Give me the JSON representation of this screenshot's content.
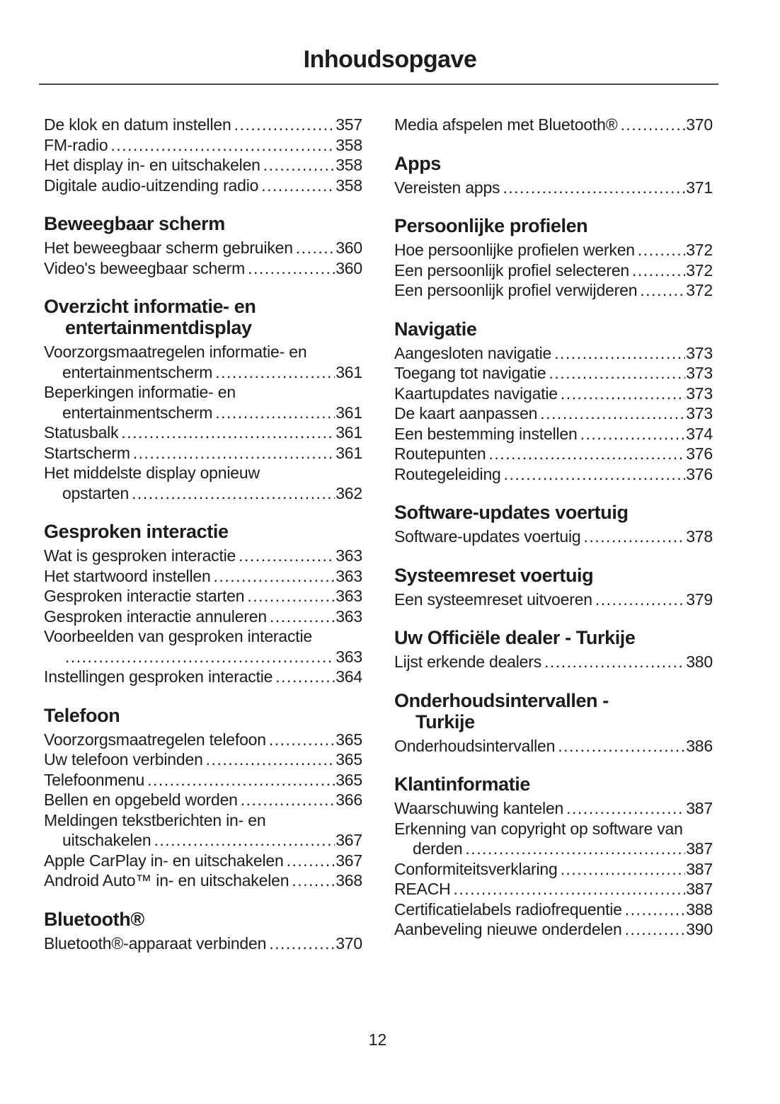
{
  "title": "Inhoudsopgave",
  "page_number": "12",
  "colors": {
    "text": "#1c1c1c",
    "rule": "#4a4a4a",
    "background": "#ffffff"
  },
  "columns": [
    {
      "blocks": [
        {
          "h": null,
          "e": [
            {
              "t": "De klok en datum instellen",
              "p": "357"
            },
            {
              "t": "FM-radio",
              "p": "358"
            },
            {
              "t": "Het display in- en uitschakelen",
              "p": "358"
            },
            {
              "t": "Digitale audio-uitzending radio",
              "p": "358"
            }
          ]
        },
        {
          "h": [
            "Beweegbaar scherm"
          ],
          "e": [
            {
              "t": "Het beweegbaar scherm gebruiken",
              "p": "360"
            },
            {
              "t": "Video's beweegbaar scherm",
              "p": "360"
            }
          ]
        },
        {
          "h": [
            "Overzicht informatie- en",
            "entertainmentdisplay"
          ],
          "e": [
            {
              "t": "Voorzorgsmaatregelen informatie- en",
              "t2": "entertainmentscherm",
              "p": "361"
            },
            {
              "t": "Beperkingen informatie- en",
              "t2": "entertainmentscherm",
              "p": "361"
            },
            {
              "t": "Statusbalk",
              "p": "361"
            },
            {
              "t": "Startscherm",
              "p": "361"
            },
            {
              "t": "Het middelste display opnieuw",
              "t2": "opstarten",
              "p": "362"
            }
          ]
        },
        {
          "h": [
            "Gesproken interactie"
          ],
          "e": [
            {
              "t": "Wat is gesproken interactie",
              "p": "363"
            },
            {
              "t": "Het startwoord instellen",
              "p": "363"
            },
            {
              "t": "Gesproken interactie starten",
              "p": "363"
            },
            {
              "t": "Gesproken interactie annuleren",
              "p": "363"
            },
            {
              "t": "Voorbeelden van gesproken interactie",
              "t2": "",
              "p": "363"
            },
            {
              "t": "Instellingen gesproken interactie",
              "p": "364"
            }
          ]
        },
        {
          "h": [
            "Telefoon"
          ],
          "e": [
            {
              "t": "Voorzorgsmaatregelen telefoon",
              "p": "365"
            },
            {
              "t": "Uw telefoon verbinden",
              "p": "365"
            },
            {
              "t": "Telefoonmenu",
              "p": "365"
            },
            {
              "t": "Bellen en opgebeld worden",
              "p": "366"
            },
            {
              "t": "Meldingen tekstberichten in- en",
              "t2": "uitschakelen",
              "p": "367"
            },
            {
              "t": "Apple CarPlay in- en uitschakelen",
              "p": "367"
            },
            {
              "t": "Android Auto™ in- en uitschakelen",
              "p": "368"
            }
          ]
        },
        {
          "h": [
            "Bluetooth®"
          ],
          "e": [
            {
              "t": "Bluetooth®-apparaat verbinden",
              "p": "370"
            }
          ]
        }
      ]
    },
    {
      "blocks": [
        {
          "h": null,
          "e": [
            {
              "t": "Media afspelen met Bluetooth®",
              "p": "370"
            }
          ]
        },
        {
          "h": [
            "Apps"
          ],
          "e": [
            {
              "t": "Vereisten apps",
              "p": "371"
            }
          ]
        },
        {
          "h": [
            "Persoonlijke profielen"
          ],
          "e": [
            {
              "t": "Hoe persoonlijke profielen werken",
              "p": "372"
            },
            {
              "t": "Een persoonlijk profiel selecteren",
              "p": "372"
            },
            {
              "t": "Een persoonlijk profiel verwijderen",
              "p": "372"
            }
          ]
        },
        {
          "h": [
            "Navigatie"
          ],
          "e": [
            {
              "t": "Aangesloten navigatie",
              "p": "373"
            },
            {
              "t": "Toegang tot navigatie",
              "p": "373"
            },
            {
              "t": "Kaartupdates navigatie",
              "p": "373"
            },
            {
              "t": "De kaart aanpassen",
              "p": "373"
            },
            {
              "t": "Een bestemming instellen",
              "p": "374"
            },
            {
              "t": "Routepunten",
              "p": "376"
            },
            {
              "t": "Routegeleiding",
              "p": "376"
            }
          ]
        },
        {
          "h": [
            "Software-updates voertuig"
          ],
          "e": [
            {
              "t": "Software-updates voertuig",
              "p": "378"
            }
          ]
        },
        {
          "h": [
            "Systeemreset voertuig"
          ],
          "e": [
            {
              "t": "Een systeemreset uitvoeren",
              "p": "379"
            }
          ]
        },
        {
          "h": [
            "Uw Officiële dealer - Turkije"
          ],
          "e": [
            {
              "t": "Lijst erkende dealers",
              "p": "380"
            }
          ]
        },
        {
          "h": [
            "Onderhoudsintervallen -",
            "Turkije"
          ],
          "e": [
            {
              "t": "Onderhoudsintervallen",
              "p": "386"
            }
          ]
        },
        {
          "h": [
            "Klantinformatie"
          ],
          "e": [
            {
              "t": "Waarschuwing kantelen",
              "p": "387"
            },
            {
              "t": "Erkenning van copyright op software van",
              "t2": "derden",
              "p": "387"
            },
            {
              "t": "Conformiteitsverklaring",
              "p": "387"
            },
            {
              "t": "REACH",
              "p": "387"
            },
            {
              "t": "Certificatielabels radiofrequentie",
              "p": "388"
            },
            {
              "t": "Aanbeveling nieuwe onderdelen",
              "p": "390"
            }
          ]
        }
      ]
    }
  ]
}
